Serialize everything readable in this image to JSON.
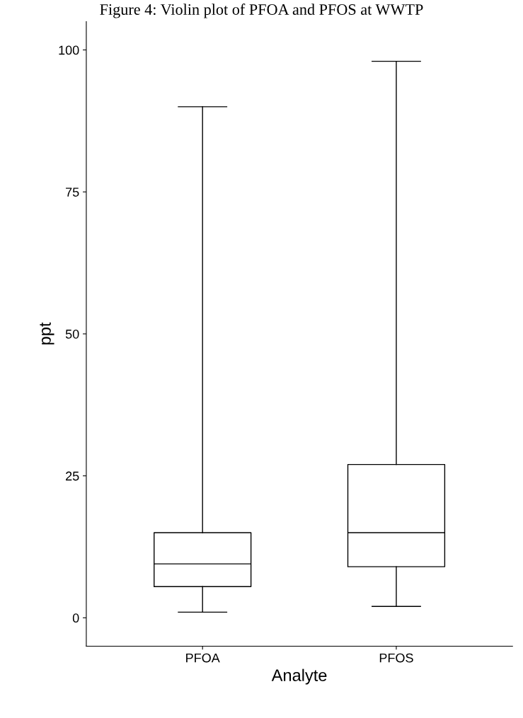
{
  "chart_data": {
    "type": "box",
    "title": "Figure 4: Violin plot of PFOA and PFOS at WWTP",
    "xlabel": "Analyte",
    "ylabel": "ppt",
    "categories": [
      "PFOA",
      "PFOS"
    ],
    "boxes": [
      {
        "low": 1,
        "q1": 5.5,
        "median": 9.5,
        "q3": 15,
        "high": 90
      },
      {
        "low": 2,
        "q1": 9,
        "median": 15,
        "q3": 27,
        "high": 98
      }
    ],
    "ylim": [
      -5,
      105
    ],
    "yticks": [
      0,
      25,
      50,
      75,
      100
    ],
    "grid": false
  }
}
